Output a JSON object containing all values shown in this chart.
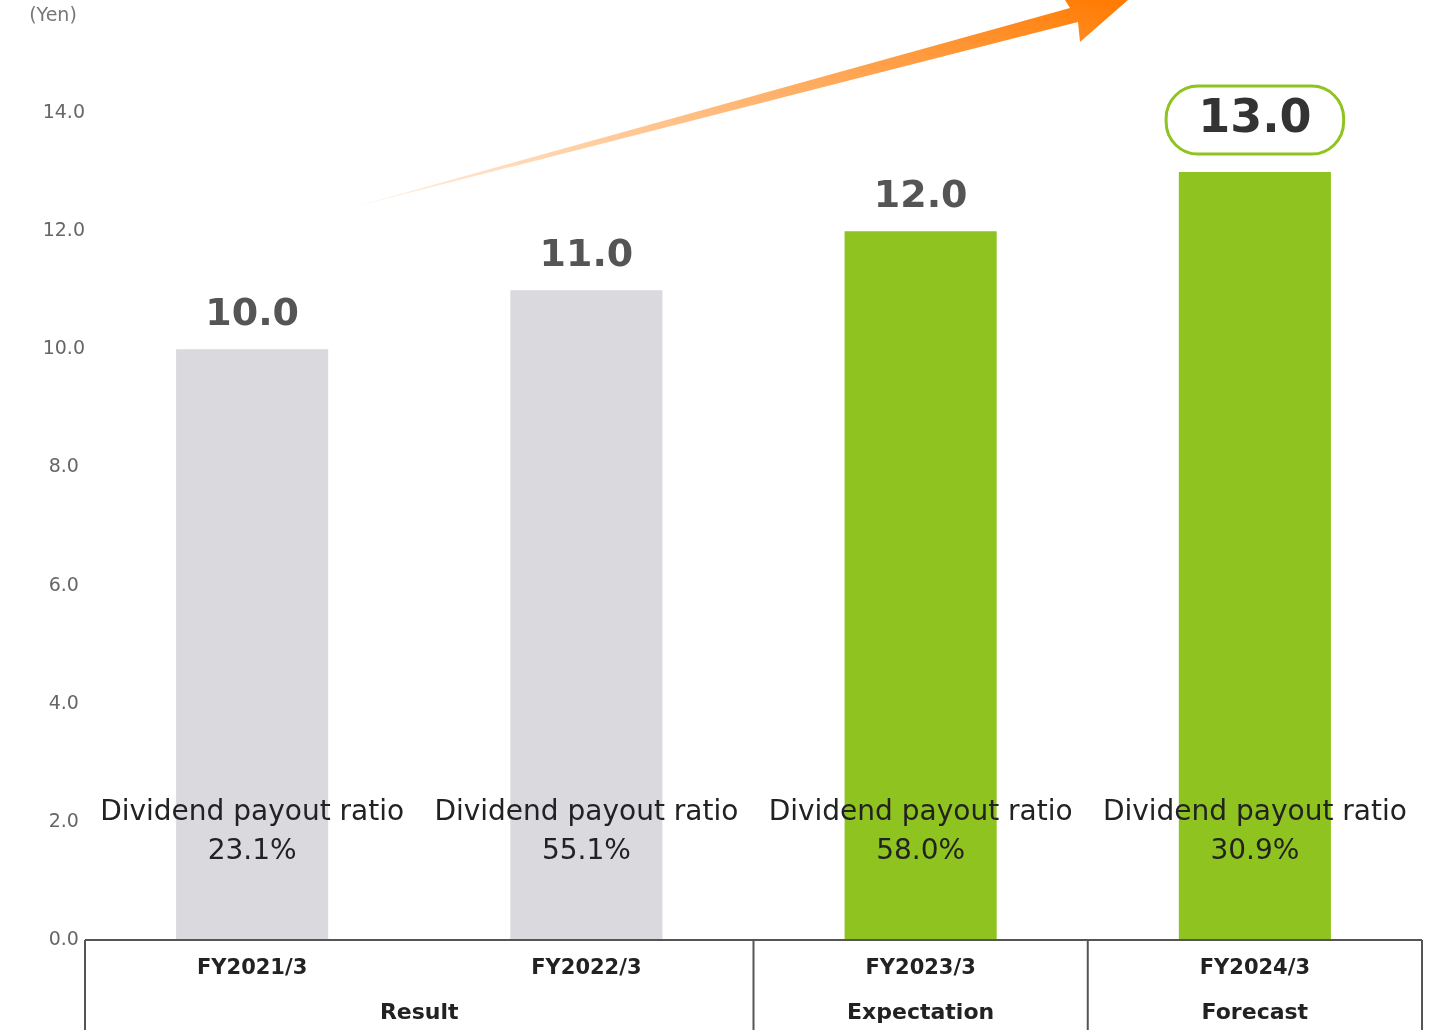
{
  "chart_data": {
    "type": "bar",
    "ylabel": "(Yen)",
    "categories": [
      "FY2021/3",
      "FY2022/3",
      "FY2023/3",
      "FY2024/3"
    ],
    "values": [
      10,
      11,
      12,
      13
    ],
    "colors": [
      "#d9d9de",
      "#d9d9de",
      "#8fc31f",
      "#8fc31f"
    ],
    "value_labels": [
      "10.0",
      "11.0",
      "12.0",
      "13.0"
    ],
    "ylim": [
      0,
      14
    ],
    "yticks": [
      {
        "value": 0,
        "label": "0.0"
      },
      {
        "value": 2,
        "label": "2.0"
      },
      {
        "value": 4,
        "label": "4.0"
      },
      {
        "value": 6,
        "label": "6.0"
      },
      {
        "value": 8,
        "label": "8.0"
      },
      {
        "value": 10,
        "label": "10.0"
      },
      {
        "value": 12,
        "label": "12.0"
      },
      {
        "value": 14,
        "label": "14.0"
      }
    ],
    "grid": false,
    "legend": false,
    "annotations": [
      "Dividend payout ratio\n23.1%",
      "Dividend payout ratio\n55.1%",
      "Dividend payout ratio\n58.0%",
      "Dividend payout ratio\n30.9%",
      "Result",
      "Expectation",
      "Forecast"
    ]
  }
}
